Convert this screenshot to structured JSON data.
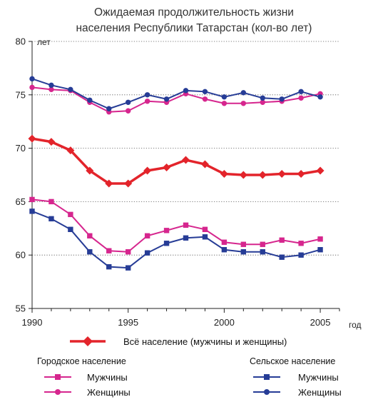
{
  "chart_data": {
    "type": "line",
    "title_line1": "Ожидаемая продолжительность жизни",
    "title_line2": "населения Республики Татарстан (кол-во лет)",
    "ylabel": "лет",
    "xlabel": "год",
    "ylim": [
      55,
      80
    ],
    "xlim": [
      1990,
      2006
    ],
    "y_ticks": [
      "55",
      "60",
      "65",
      "70",
      "75",
      "80"
    ],
    "x_ticks": [
      "1990",
      "1995",
      "2000",
      "2005"
    ],
    "grid": "horizontal dotted",
    "x": [
      1990,
      1991,
      1992,
      1993,
      1994,
      1995,
      1996,
      1997,
      1998,
      1999,
      2000,
      2001,
      2002,
      2003,
      2004,
      2005
    ],
    "series": [
      {
        "key": "total",
        "name": "Всё население  (мужчины и женщины)",
        "color": "#e3242b",
        "marker": "diamond",
        "values": [
          70.9,
          70.6,
          69.8,
          67.9,
          66.7,
          66.7,
          67.9,
          68.2,
          68.9,
          68.5,
          67.6,
          67.5,
          67.5,
          67.6,
          67.6,
          67.9
        ]
      },
      {
        "key": "urban_men",
        "group": "urban",
        "name": "Мужчины",
        "color": "#d6268e",
        "marker": "square",
        "values": [
          65.2,
          65.0,
          63.8,
          61.8,
          60.4,
          60.3,
          61.8,
          62.3,
          62.8,
          62.4,
          61.2,
          61.0,
          61.0,
          61.4,
          61.1,
          61.5
        ]
      },
      {
        "key": "urban_women",
        "group": "urban",
        "name": "Женщины",
        "color": "#d6268e",
        "marker": "circle",
        "values": [
          75.7,
          75.5,
          75.4,
          74.3,
          73.4,
          73.5,
          74.4,
          74.3,
          75.1,
          74.6,
          74.2,
          74.2,
          74.3,
          74.4,
          74.7,
          75.1
        ]
      },
      {
        "key": "rural_men",
        "group": "rural",
        "name": "Мужчины",
        "color": "#263c96",
        "marker": "square",
        "values": [
          64.1,
          63.4,
          62.4,
          60.3,
          58.9,
          58.8,
          60.2,
          61.1,
          61.6,
          61.7,
          60.5,
          60.3,
          60.3,
          59.8,
          60.0,
          60.5
        ]
      },
      {
        "key": "rural_women",
        "group": "rural",
        "name": "Женщины",
        "color": "#263c96",
        "marker": "circle",
        "values": [
          76.5,
          75.9,
          75.5,
          74.5,
          73.7,
          74.3,
          75.0,
          74.6,
          75.4,
          75.3,
          74.8,
          75.2,
          74.7,
          74.6,
          75.3,
          74.8
        ]
      }
    ],
    "legend": {
      "urban_header": "Городское население",
      "rural_header": "Сельское население"
    }
  }
}
